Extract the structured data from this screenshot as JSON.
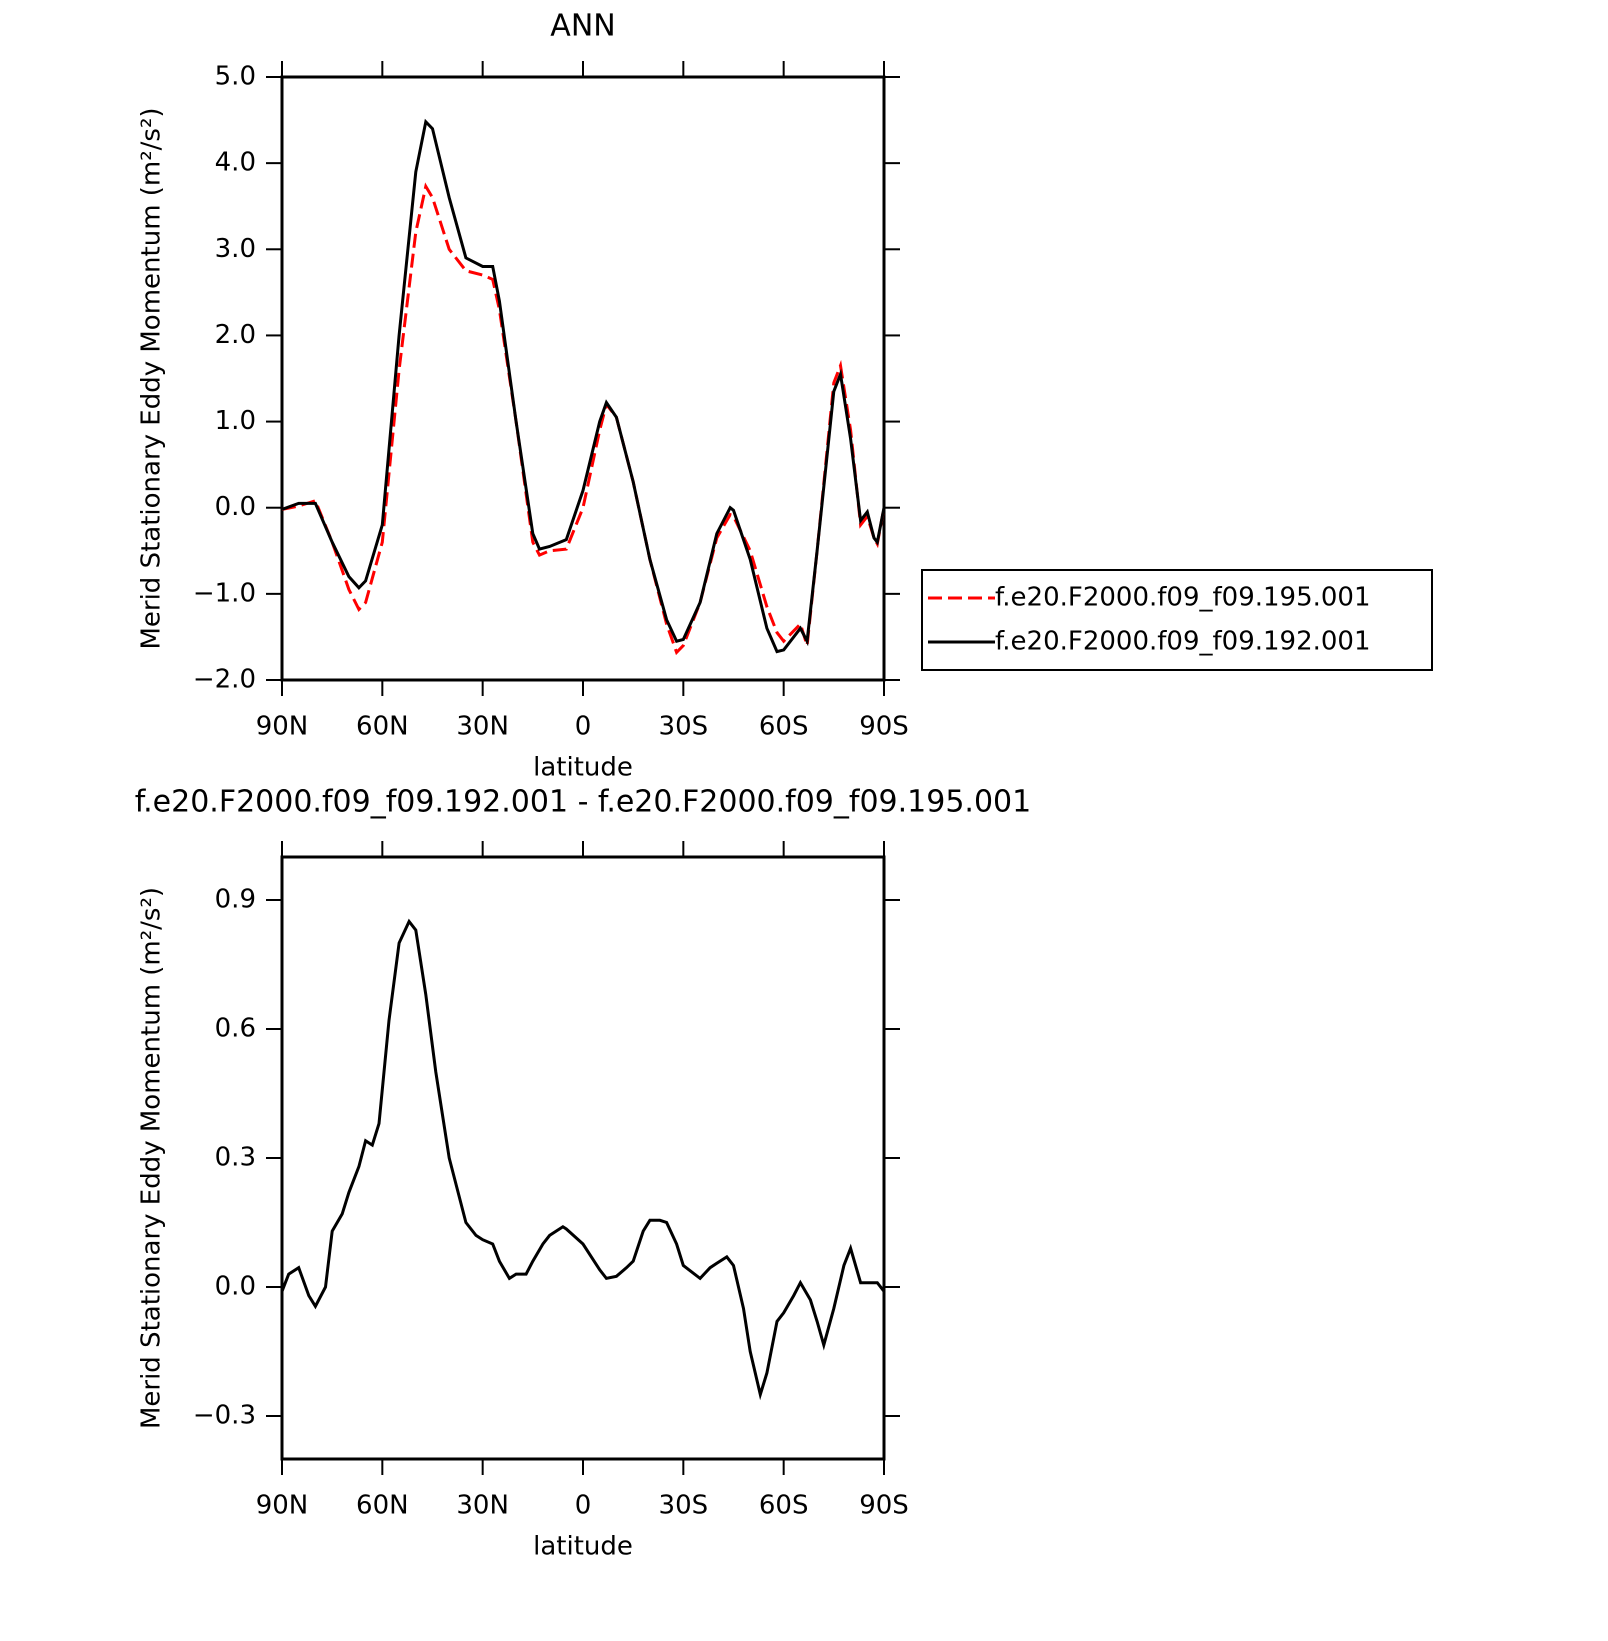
{
  "chart_data": [
    {
      "type": "line",
      "title": "ANN",
      "xlabel": "latitude",
      "ylabel": "Merid Stationary Eddy Momentum (m²/s²)",
      "x": [
        90,
        85,
        80,
        75,
        70,
        67,
        65,
        60,
        55,
        50,
        47,
        45,
        40,
        35,
        30,
        27,
        25,
        20,
        15,
        13,
        10,
        5,
        0,
        -5,
        -7,
        -10,
        -15,
        -20,
        -25,
        -28,
        -30,
        -35,
        -40,
        -44,
        -45,
        -50,
        -55,
        -58,
        -60,
        -65,
        -67,
        -70,
        -75,
        -77,
        -80,
        -83,
        -85,
        -87,
        -88,
        -90
      ],
      "series": [
        {
          "name": "f.e20.F2000.f09_f09.195.001",
          "color": "#ff0000",
          "line_style": "dashed",
          "values": [
            -0.02,
            0.02,
            0.08,
            -0.4,
            -0.95,
            -1.18,
            -1.1,
            -0.4,
            1.6,
            3.2,
            3.73,
            3.6,
            3.0,
            2.75,
            2.7,
            2.65,
            2.3,
            1.0,
            -0.4,
            -0.55,
            -0.5,
            -0.48,
            0.0,
            0.9,
            1.2,
            1.05,
            0.3,
            -0.6,
            -1.35,
            -1.68,
            -1.6,
            -1.1,
            -0.35,
            -0.08,
            -0.1,
            -0.5,
            -1.15,
            -1.45,
            -1.55,
            -1.35,
            -1.6,
            -0.5,
            1.45,
            1.65,
            0.9,
            -0.2,
            -0.1,
            -0.35,
            -0.42,
            0.0
          ]
        },
        {
          "name": "f.e20.F2000.f09_f09.192.001",
          "color": "#000000",
          "line_style": "solid",
          "values": [
            -0.02,
            0.05,
            0.05,
            -0.4,
            -0.8,
            -0.93,
            -0.85,
            -0.2,
            2.0,
            3.9,
            4.48,
            4.4,
            3.6,
            2.9,
            2.8,
            2.8,
            2.4,
            1.0,
            -0.3,
            -0.48,
            -0.45,
            -0.37,
            0.2,
            1.0,
            1.22,
            1.05,
            0.3,
            -0.6,
            -1.3,
            -1.55,
            -1.53,
            -1.1,
            -0.3,
            0.0,
            -0.03,
            -0.6,
            -1.4,
            -1.67,
            -1.65,
            -1.4,
            -1.55,
            -0.5,
            1.35,
            1.55,
            0.8,
            -0.15,
            -0.05,
            -0.35,
            -0.4,
            0.0
          ]
        }
      ],
      "xlim": [
        90,
        -90
      ],
      "xticks": [
        {
          "value": 90,
          "label": "90N"
        },
        {
          "value": 60,
          "label": "60N"
        },
        {
          "value": 30,
          "label": "30N"
        },
        0,
        {
          "value": -30,
          "label": "30S"
        },
        {
          "value": -60,
          "label": "60S"
        },
        {
          "value": -90,
          "label": "90S"
        }
      ],
      "ylim": [
        -2,
        5
      ],
      "yticks": [
        {
          "value": -2,
          "label": "−2.0"
        },
        {
          "value": -1,
          "label": "−1.0"
        },
        {
          "value": 0,
          "label": "0.0"
        },
        {
          "value": 1,
          "label": "1.0"
        },
        {
          "value": 2,
          "label": "2.0"
        },
        {
          "value": 3,
          "label": "3.0"
        },
        {
          "value": 4,
          "label": "4.0"
        },
        {
          "value": 5,
          "label": "5.0"
        }
      ],
      "legend": "right"
    },
    {
      "type": "line",
      "title": "f.e20.F2000.f09_f09.192.001 - f.e20.F2000.f09_f09.195.001",
      "xlabel": "latitude",
      "ylabel": "Merid Stationary Eddy Momentum (m²/s²)",
      "x": [
        90,
        88,
        85,
        82,
        80,
        77,
        75,
        72,
        70,
        67,
        65,
        63,
        61,
        58,
        55,
        52,
        50,
        47,
        44,
        40,
        35,
        32,
        30,
        27,
        25,
        22,
        20,
        17,
        15,
        12,
        10,
        6,
        5,
        0,
        -5,
        -7,
        -10,
        -13,
        -15,
        -18,
        -20,
        -23,
        -25,
        -28,
        -30,
        -35,
        -38,
        -40,
        -43,
        -45,
        -48,
        -50,
        -53,
        -55,
        -58,
        -60,
        -63,
        -65,
        -68,
        -70,
        -72,
        -75,
        -78,
        -80,
        -83,
        -85,
        -88,
        -90
      ],
      "color": "#000000",
      "values": [
        -0.01,
        0.03,
        0.045,
        -0.02,
        -0.045,
        0.0,
        0.13,
        0.17,
        0.22,
        0.28,
        0.34,
        0.33,
        0.38,
        0.62,
        0.8,
        0.85,
        0.83,
        0.68,
        0.5,
        0.3,
        0.15,
        0.12,
        0.11,
        0.1,
        0.06,
        0.02,
        0.03,
        0.03,
        0.06,
        0.1,
        0.12,
        0.14,
        0.135,
        0.1,
        0.04,
        0.02,
        0.025,
        0.045,
        0.06,
        0.13,
        0.155,
        0.155,
        0.15,
        0.1,
        0.05,
        0.02,
        0.045,
        0.055,
        0.07,
        0.05,
        -0.05,
        -0.15,
        -0.25,
        -0.2,
        -0.08,
        -0.06,
        -0.02,
        0.01,
        -0.03,
        -0.08,
        -0.135,
        -0.05,
        0.05,
        0.09,
        0.01,
        0.01,
        0.01,
        -0.01
      ],
      "xlim": [
        90,
        -90
      ],
      "xticks": [
        {
          "value": 90,
          "label": "90N"
        },
        {
          "value": 60,
          "label": "60N"
        },
        {
          "value": 30,
          "label": "30N"
        },
        0,
        {
          "value": -30,
          "label": "30S"
        },
        {
          "value": -60,
          "label": "60S"
        },
        {
          "value": -90,
          "label": "90S"
        }
      ],
      "ylim": [
        -0.4,
        1.0
      ],
      "yticks": [
        {
          "value": -0.3,
          "label": "−0.3"
        },
        {
          "value": 0,
          "label": "0.0"
        },
        0.3,
        0.6,
        0.9
      ]
    }
  ]
}
